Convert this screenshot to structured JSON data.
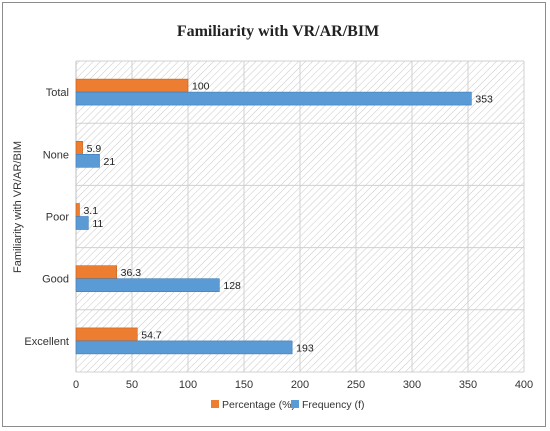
{
  "chart_data": {
    "type": "bar",
    "orientation": "horizontal",
    "title": "Familiarity with VR/AR/BIM",
    "xlabel": "",
    "ylabel": "Familiarity with VR/AR/BIM",
    "categories": [
      "Total",
      "None",
      "Poor",
      "Good",
      "Excellent"
    ],
    "series": [
      {
        "name": "Percentage (%)",
        "color": "#ED7D31",
        "values": [
          100,
          5.9,
          3.1,
          36.3,
          54.7
        ]
      },
      {
        "name": "Frequency (f)",
        "color": "#5B9BD5",
        "values": [
          353,
          21,
          11,
          128,
          193
        ]
      }
    ],
    "xlim": [
      0,
      400
    ],
    "xticks": [
      0,
      50,
      100,
      150,
      200,
      250,
      300,
      350,
      400
    ],
    "grid": true,
    "data_labels": true,
    "legend_position": "bottom",
    "plot_background": "diagonal-hatch"
  }
}
